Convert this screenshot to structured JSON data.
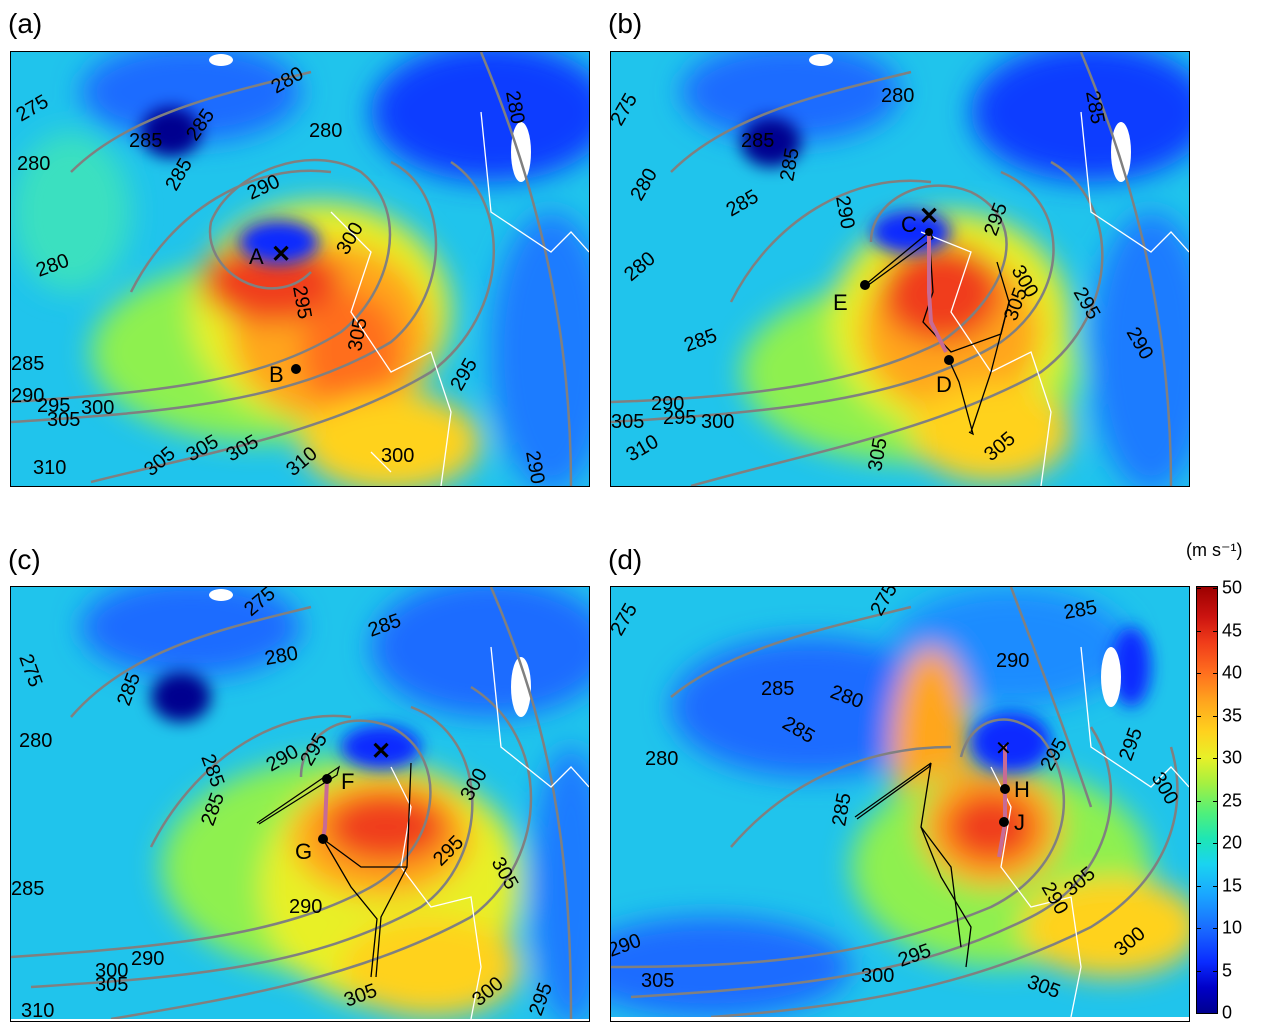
{
  "panels": [
    {
      "letter": "(a)",
      "contours": [
        "275",
        "280",
        "285",
        "285",
        "285",
        "280",
        "280",
        "290",
        "295",
        "300",
        "305",
        "280",
        "285",
        "290",
        "295",
        "300",
        "305",
        "305",
        "305",
        "310",
        "305",
        "300",
        "310",
        "295",
        "290",
        "280"
      ],
      "markers": [
        "A",
        "B"
      ]
    },
    {
      "letter": "(b)",
      "contours": [
        "275",
        "285",
        "280",
        "285",
        "285",
        "290",
        "295",
        "300",
        "305",
        "295",
        "290",
        "280",
        "285",
        "290",
        "295",
        "300",
        "305",
        "310",
        "305",
        "305",
        "285",
        "280"
      ],
      "markers": [
        "C",
        "E",
        "D"
      ]
    },
    {
      "letter": "(c)",
      "contours": [
        "275",
        "280",
        "285",
        "285",
        "285",
        "290",
        "295",
        "300",
        "305",
        "295",
        "290",
        "290",
        "285",
        "300",
        "305",
        "310",
        "300",
        "305",
        "295",
        "280",
        "285",
        "275"
      ],
      "markers": [
        "F",
        "G"
      ]
    },
    {
      "letter": "(d)",
      "contours": [
        "275",
        "280",
        "285",
        "285",
        "290",
        "295",
        "285",
        "300",
        "305",
        "290",
        "295",
        "305",
        "300",
        "290",
        "300",
        "295",
        "305",
        "285",
        "280",
        "275"
      ],
      "markers": [
        "H",
        "J"
      ]
    }
  ],
  "colorbar": {
    "unit": "(m s⁻¹)",
    "ticks": [
      "50",
      "45",
      "40",
      "35",
      "30",
      "25",
      "20",
      "15",
      "10",
      "5",
      "0"
    ]
  },
  "colors": {
    "contour": "#808080",
    "coast": "#ffffff",
    "track_black": "#000000",
    "track_pink": "#c76b95"
  }
}
